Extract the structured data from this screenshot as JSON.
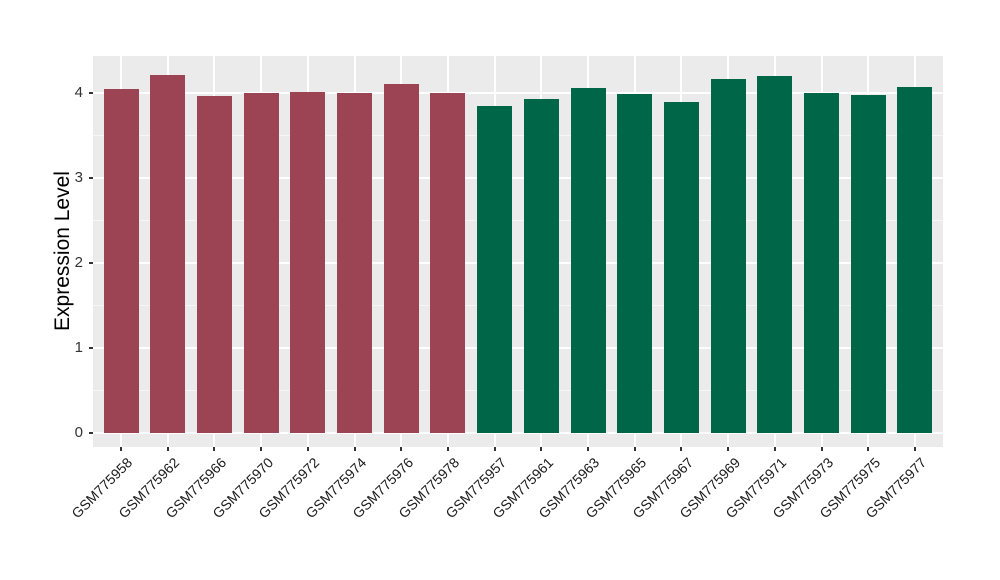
{
  "chart_data": {
    "type": "bar",
    "title": "",
    "xlabel": "",
    "ylabel": "Expression Level",
    "categories": [
      "GSM775958",
      "GSM775962",
      "GSM775966",
      "GSM775970",
      "GSM775972",
      "GSM775974",
      "GSM775976",
      "GSM775978",
      "GSM775957",
      "GSM775961",
      "GSM775963",
      "GSM775965",
      "GSM775967",
      "GSM775969",
      "GSM775971",
      "GSM775973",
      "GSM775975",
      "GSM775977"
    ],
    "values": [
      4.04,
      4.21,
      3.96,
      4.0,
      4.01,
      3.99,
      4.1,
      4.0,
      3.84,
      3.93,
      4.05,
      3.98,
      3.89,
      4.16,
      4.2,
      3.99,
      3.97,
      4.06
    ],
    "group_of_bar": [
      "A",
      "A",
      "A",
      "A",
      "A",
      "A",
      "A",
      "A",
      "B",
      "B",
      "B",
      "B",
      "B",
      "B",
      "B",
      "B",
      "B",
      "B"
    ],
    "group_colors": {
      "A": "#9C4453",
      "B": "#006648"
    },
    "ylim": [
      0,
      4.43
    ],
    "yticks": [
      0,
      1,
      2,
      3,
      4
    ],
    "yticks_minor": [
      0.5,
      1.5,
      2.5,
      3.5
    ],
    "grid": true,
    "legend": "none",
    "panel_background": "#EBEBEB",
    "gridline_color": "#FFFFFF"
  }
}
